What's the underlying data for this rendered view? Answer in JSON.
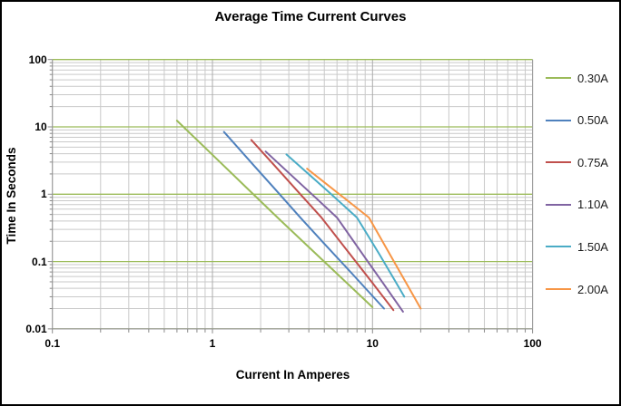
{
  "title": "Average Time Current Curves",
  "chart_data": {
    "type": "line",
    "title": "Average Time Current Curves",
    "xlabel": "Current In Amperes",
    "ylabel": "Time In Seconds",
    "x_scale": "log",
    "y_scale": "log",
    "xlim": [
      0.1,
      100
    ],
    "ylim": [
      0.01,
      100
    ],
    "x_ticks": [
      0.1,
      1,
      10,
      100
    ],
    "y_ticks": [
      100,
      10,
      1,
      0.1,
      0.01
    ],
    "grid": "log major + minor, on",
    "legend_position": "right",
    "series": [
      {
        "name": "0.30A",
        "color": "#9BBB59",
        "points": [
          [
            0.6,
            12.4
          ],
          [
            1.0,
            3.85
          ],
          [
            1.6,
            1.31
          ],
          [
            2.6,
            0.43
          ],
          [
            4.0,
            0.164
          ],
          [
            6.0,
            0.066
          ],
          [
            10.0,
            0.021
          ]
        ]
      },
      {
        "name": "0.50A",
        "color": "#4F81BD",
        "points": [
          [
            1.18,
            8.4
          ],
          [
            1.8,
            2.73
          ],
          [
            2.5,
            1.14
          ],
          [
            3.54,
            0.45
          ],
          [
            5.0,
            0.184
          ],
          [
            7.5,
            0.065
          ],
          [
            11.8,
            0.02
          ]
        ]
      },
      {
        "name": "0.75A",
        "color": "#C0504D",
        "points": [
          [
            1.75,
            6.4
          ],
          [
            2.5,
            2.5
          ],
          [
            3.5,
            1.03
          ],
          [
            4.8,
            0.45
          ],
          [
            7.0,
            0.142
          ],
          [
            10.0,
            0.048
          ],
          [
            13.5,
            0.019
          ]
        ]
      },
      {
        "name": "1.10A",
        "color": "#8064A2",
        "points": [
          [
            2.15,
            4.3
          ],
          [
            3.0,
            2.07
          ],
          [
            4.3,
            0.94
          ],
          [
            6.0,
            0.45
          ],
          [
            9.0,
            0.114
          ],
          [
            12.0,
            0.043
          ],
          [
            15.5,
            0.018
          ]
        ]
      },
      {
        "name": "1.50A",
        "color": "#4BACC6",
        "points": [
          [
            2.9,
            3.9
          ],
          [
            4.0,
            1.98
          ],
          [
            5.5,
            1.01
          ],
          [
            8.0,
            0.45
          ],
          [
            11.0,
            0.13
          ],
          [
            13.5,
            0.057
          ],
          [
            15.8,
            0.03
          ]
        ]
      },
      {
        "name": "2.00A",
        "color": "#F79646",
        "points": [
          [
            3.9,
            2.4
          ],
          [
            5.0,
            1.5
          ],
          [
            7.0,
            0.8
          ],
          [
            9.5,
            0.45
          ],
          [
            13.0,
            0.121
          ],
          [
            16.5,
            0.045
          ],
          [
            20.0,
            0.02
          ]
        ]
      }
    ],
    "style": {
      "major_hgrid_color": "#9BBB59",
      "major_vgrid_color": "#ABABAB",
      "minor_grid_color": "#C9C9C9",
      "axis_border_color": "#9B9B9B",
      "tick_color": "#898989"
    }
  }
}
